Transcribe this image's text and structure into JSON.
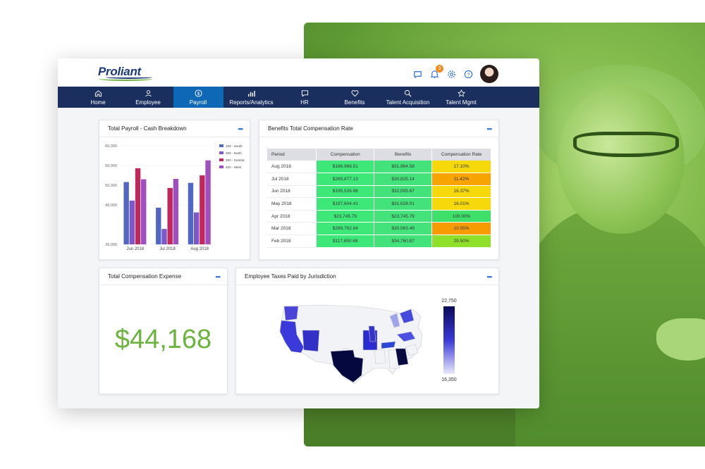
{
  "brand": {
    "name": "Proliant"
  },
  "header": {
    "notification_count": "3"
  },
  "nav": [
    {
      "label": "Home",
      "icon": "home-icon"
    },
    {
      "label": "Employee",
      "icon": "person-icon"
    },
    {
      "label": "Payroll",
      "icon": "dollar-icon",
      "active": true
    },
    {
      "label": "Reports/Analytics",
      "icon": "bar-chart-icon"
    },
    {
      "label": "HR",
      "icon": "chat-icon"
    },
    {
      "label": "Benefits",
      "icon": "heart-icon"
    },
    {
      "label": "Talent Acquisition",
      "icon": "search-icon"
    },
    {
      "label": "Talent Mgmt",
      "icon": "star-icon"
    }
  ],
  "cards": {
    "payroll": {
      "title": "Total Payroll - Cash Breakdown",
      "menu": "•••"
    },
    "benefits": {
      "title": "Benefits Total Compensation Rate",
      "menu": "•••"
    },
    "expense": {
      "title": "Total Compensation Expense",
      "menu": "•••",
      "value": "$44,168"
    },
    "taxes": {
      "title": "Employee Taxes Paid by Jurisdiction",
      "menu": "•••",
      "legend_max": "22,750",
      "legend_min": "16,350"
    }
  },
  "benefits_table": {
    "headers": [
      "Period",
      "Compensation",
      "Benefits",
      "Compensation Rate"
    ],
    "rows": [
      [
        "Aug 2018",
        "$186,968.51",
        "$31,964.58",
        "17.10%"
      ],
      [
        "Jul 2018",
        "$269,877.13",
        "$30,825.14",
        "11.42%"
      ],
      [
        "Jun 2018",
        "$195,526.96",
        "$32,005.67",
        "16.37%"
      ],
      [
        "May 2018",
        "$197,604.41",
        "$31,628.01",
        "16.01%"
      ],
      [
        "Apr 2018",
        "$23,745.79",
        "$23,745.79",
        "100.00%"
      ],
      [
        "Mar 2018",
        "$289,762.64",
        "$30,563.49",
        "10.55%"
      ],
      [
        "Feb 2018",
        "$117,850.68",
        "$34,760.87",
        "29.50%"
      ]
    ],
    "rate_colors": [
      "#f5d90a",
      "#f7a400",
      "#f5d90a",
      "#f5d90a",
      "#3ee06a",
      "#f79c00",
      "#8ee02a"
    ],
    "comp_color": "#3ee878",
    "benefit_color": "#44e27a"
  },
  "chart_data": {
    "type": "bar",
    "categories": [
      "Jun 2018",
      "Jul 2018",
      "Aug 2018"
    ],
    "series": [
      {
        "name": "100 - South",
        "color": "#5067c4",
        "values": [
          50800,
          44300,
          50600
        ]
      },
      {
        "name": "200 - North",
        "color": "#7b59c8",
        "values": [
          46100,
          38900,
          43100
        ]
      },
      {
        "name": "300 - Central",
        "color": "#c0275b",
        "values": [
          54300,
          49300,
          52500
        ]
      },
      {
        "name": "400 - West",
        "color": "#a04fc0",
        "values": [
          51500,
          51600,
          56300
        ]
      }
    ],
    "yticks": [
      "60,000",
      "55,000",
      "50,000",
      "45,000",
      "35,000"
    ],
    "ytick_values": [
      60000,
      55000,
      50000,
      45000,
      35000
    ],
    "ylim": [
      35000,
      60000
    ],
    "legend": "top-right"
  },
  "colors": {
    "nav_bg": "#1b2f5e",
    "nav_active": "#0f68b5",
    "accent_green": "#6cb33f",
    "link_blue": "#2f6fd6"
  }
}
